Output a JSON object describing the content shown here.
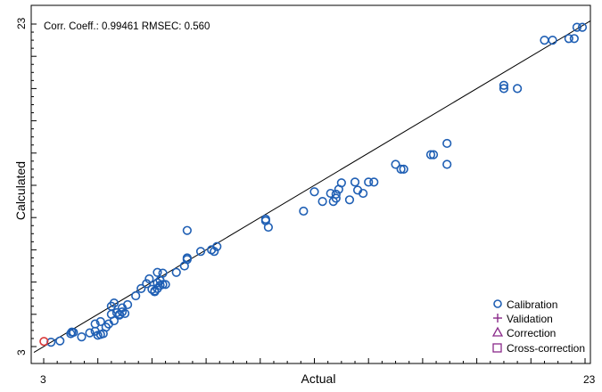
{
  "stats_text": "Corr. Coeff.: 0.99461   RMSEC: 0.560",
  "chart_data": {
    "type": "scatter",
    "title": "",
    "xlabel": "Actual",
    "ylabel": "Calculated",
    "xlim": [
      3,
      23
    ],
    "ylim": [
      3,
      23
    ],
    "x_tick_labels": [
      "3",
      "23"
    ],
    "y_tick_labels": [
      "3",
      "23"
    ],
    "grid": false,
    "legend_placement": "bottom-right",
    "reference_line": "y = x",
    "legend": [
      {
        "label": "Calibration",
        "marker": "circle",
        "color": "#1f5fb4"
      },
      {
        "label": "Validation",
        "marker": "plus",
        "color": "#8a2a8a"
      },
      {
        "label": "Correction",
        "marker": "triangle",
        "color": "#8a2a8a"
      },
      {
        "label": "Cross-correction",
        "marker": "square",
        "color": "#8a2a8a"
      }
    ],
    "series": [
      {
        "name": "Calibration",
        "color": "#1f5fb4",
        "x": [
          3.27,
          3.6,
          4.0,
          4.04,
          4.1,
          4.4,
          4.7,
          4.9,
          4.9,
          5.0,
          5.1,
          5.1,
          5.2,
          5.3,
          5.4,
          5.5,
          5.5,
          5.6,
          5.6,
          5.7,
          5.8,
          5.8,
          5.9,
          5.9,
          6.0,
          6.1,
          6.4,
          6.6,
          6.8,
          6.9,
          7.0,
          7.1,
          7.1,
          7.2,
          7.2,
          7.2,
          7.3,
          7.3,
          7.4,
          7.4,
          7.5,
          7.9,
          8.2,
          8.3,
          8.3,
          8.3,
          8.8,
          9.2,
          9.3,
          9.4,
          11.2,
          11.2,
          11.3,
          12.6,
          13.0,
          13.3,
          13.6,
          13.7,
          13.8,
          13.8,
          13.9,
          14.0,
          14.3,
          14.5,
          14.6,
          14.8,
          15.0,
          15.2,
          16.0,
          16.2,
          16.3,
          17.3,
          17.4,
          17.9,
          17.9,
          20.0,
          20.0,
          20.5,
          21.5,
          21.8,
          22.4,
          22.6,
          22.7,
          22.9
        ],
        "y": [
          3.27,
          3.35,
          3.8,
          3.9,
          3.88,
          3.6,
          3.85,
          3.95,
          4.4,
          3.7,
          3.75,
          4.55,
          3.8,
          4.2,
          4.4,
          5.0,
          5.5,
          4.6,
          5.7,
          5.1,
          5.0,
          4.95,
          5.4,
          5.15,
          5.05,
          5.6,
          6.15,
          6.6,
          6.9,
          7.2,
          6.55,
          6.45,
          6.4,
          7.6,
          6.6,
          6.95,
          7.1,
          6.8,
          7.55,
          6.85,
          6.85,
          7.6,
          8.0,
          8.5,
          8.4,
          10.2,
          8.9,
          9.0,
          8.9,
          9.2,
          10.8,
          10.9,
          10.4,
          11.4,
          12.6,
          12.0,
          12.5,
          12.0,
          12.2,
          12.45,
          12.75,
          13.15,
          12.1,
          13.2,
          12.7,
          12.5,
          13.2,
          13.2,
          14.3,
          14.0,
          14.0,
          14.9,
          14.9,
          14.3,
          15.6,
          19.0,
          19.2,
          19.0,
          22.0,
          22.0,
          22.1,
          22.1,
          22.8,
          22.8
        ]
      },
      {
        "name": "",
        "color": "#d93a3a",
        "x": [
          3.01
        ],
        "y": [
          3.32
        ]
      }
    ]
  }
}
